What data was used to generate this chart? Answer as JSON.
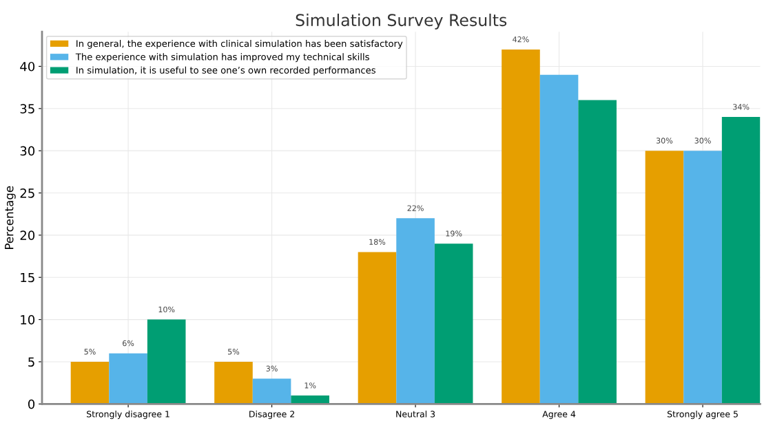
{
  "chart_data": {
    "type": "bar",
    "title": "Simulation Survey Results",
    "ylabel": "Percentage",
    "categories": [
      "Strongly disagree 1",
      "Disagree 2",
      "Neutral 3",
      "Agree 4",
      "Strongly agree 5"
    ],
    "series": [
      {
        "name": "In general, the experience with clinical simulation has been satisfactory",
        "color": "#e69f00",
        "values": [
          5,
          5,
          18,
          42,
          30
        ],
        "value_labels": [
          "5%",
          "5%",
          "18%",
          "42%",
          "30%"
        ]
      },
      {
        "name": "The experience with simulation has improved my technical skills",
        "color": "#56b4e9",
        "values": [
          6,
          3,
          22,
          39,
          30
        ],
        "value_labels": [
          "6%",
          "3%",
          "22%",
          null,
          "30%"
        ]
      },
      {
        "name": "In simulation, it is useful to see one’s own recorded performances",
        "color": "#009e73",
        "values": [
          10,
          1,
          19,
          36,
          34
        ],
        "value_labels": [
          "10%",
          "1%",
          "19%",
          null,
          "34%"
        ]
      }
    ],
    "ylim": [
      0,
      44.1
    ],
    "yticks": [
      0,
      5,
      10,
      15,
      20,
      25,
      30,
      35,
      40
    ],
    "grid": true,
    "legend": "top left"
  }
}
